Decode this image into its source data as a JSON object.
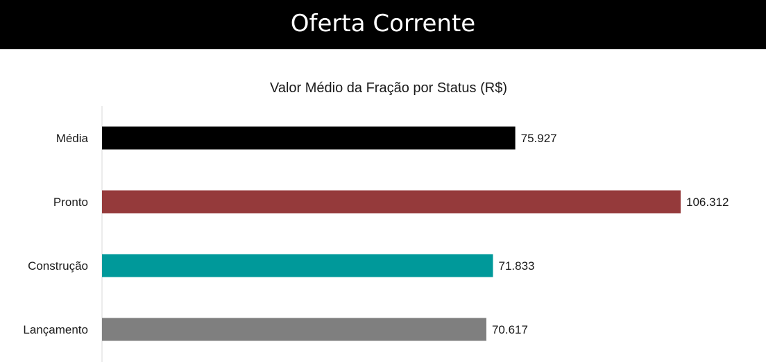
{
  "header": {
    "title": "Oferta Corrente"
  },
  "chart_data": {
    "type": "bar",
    "orientation": "horizontal",
    "title": "Valor Médio da Fração por Status (R$)",
    "categories": [
      "Média",
      "Pronto",
      "Construção",
      "Lançamento"
    ],
    "values": [
      75927,
      106312,
      71833,
      70617
    ],
    "value_labels": [
      "75.927",
      "106.312",
      "71.833",
      "70.617"
    ],
    "colors": [
      "#000000",
      "#953a3b",
      "#00999a",
      "#7f7f7f"
    ],
    "xlim": [
      0,
      106312
    ],
    "grid": false,
    "legend": "none"
  }
}
